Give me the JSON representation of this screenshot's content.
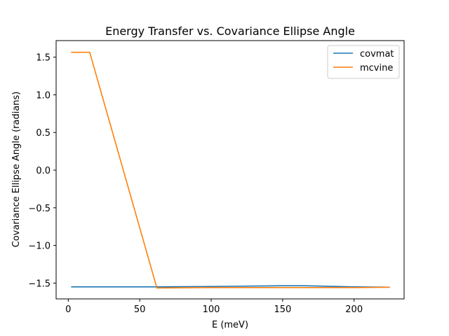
{
  "chart_data": {
    "type": "line",
    "title": "Energy Transfer vs. Covariance Ellipse Angle",
    "xlabel": "E (meV)",
    "ylabel": "Covariance Ellipse Angle (radians)",
    "xlim": [
      -8.5,
      235
    ],
    "ylim": [
      -1.71,
      1.72
    ],
    "xticks": [
      {
        "value": 0,
        "label": "0"
      },
      {
        "value": 50,
        "label": "50"
      },
      {
        "value": 100,
        "label": "100"
      },
      {
        "value": 150,
        "label": "150"
      },
      {
        "value": 200,
        "label": "200"
      }
    ],
    "yticks": [
      {
        "value": 1.5,
        "label": "1.5"
      },
      {
        "value": 1.0,
        "label": "1.0"
      },
      {
        "value": 0.5,
        "label": "0.5"
      },
      {
        "value": 0.0,
        "label": "0.0"
      },
      {
        "value": -0.5,
        "label": "−0.5"
      },
      {
        "value": -1.0,
        "label": "−1.0"
      },
      {
        "value": -1.5,
        "label": "−1.5"
      }
    ],
    "grid": false,
    "legend_position": "top-right",
    "series": [
      {
        "name": "covmat",
        "color": "#1f77b4",
        "x": [
          2,
          62,
          100,
          150,
          165,
          200,
          225
        ],
        "y": [
          -1.55,
          -1.55,
          -1.545,
          -1.535,
          -1.535,
          -1.55,
          -1.555
        ]
      },
      {
        "name": "mcvine",
        "color": "#ff7f0e",
        "x": [
          2,
          15,
          62,
          100,
          150,
          200,
          225
        ],
        "y": [
          1.565,
          1.565,
          -1.565,
          -1.56,
          -1.56,
          -1.56,
          -1.555
        ]
      }
    ]
  }
}
